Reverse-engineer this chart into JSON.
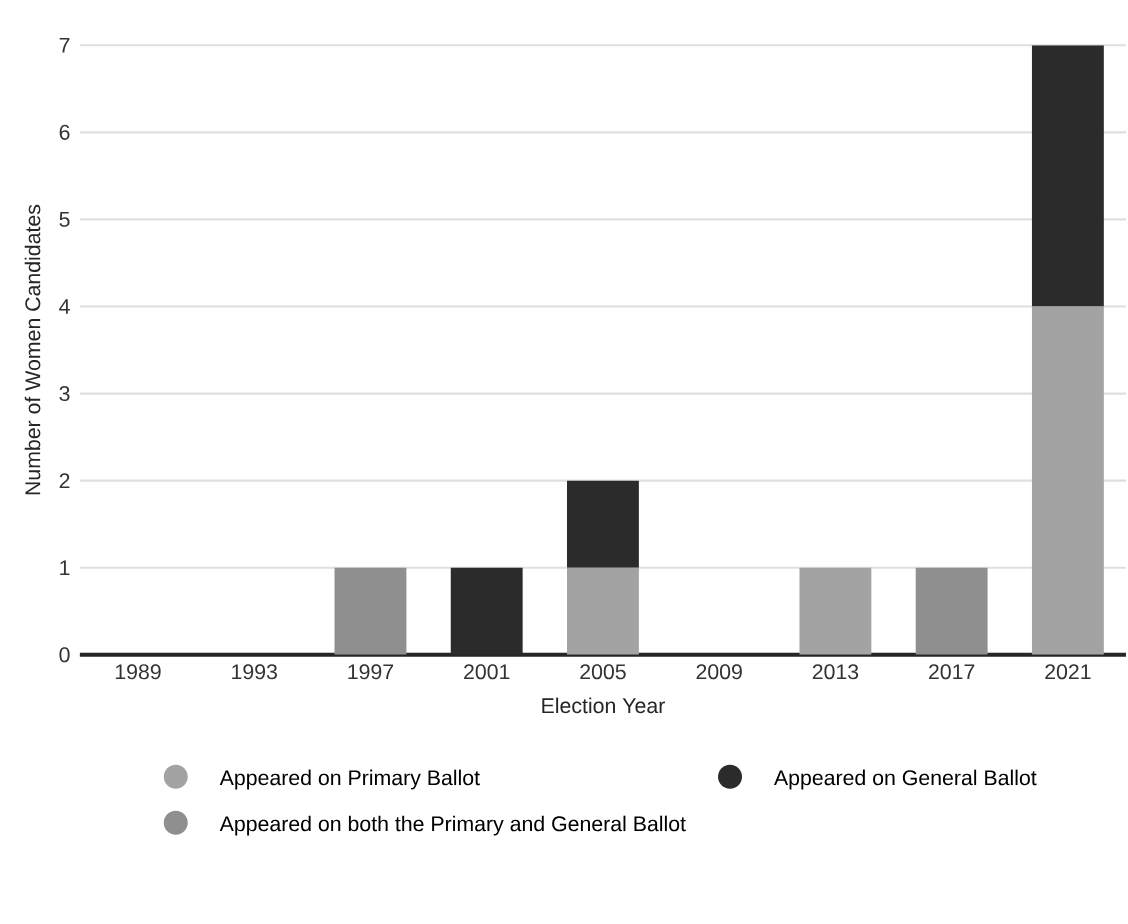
{
  "chart_data": {
    "type": "bar",
    "stacked": true,
    "xlabel": "Election Year",
    "ylabel": "Number of Women Candidates",
    "categories": [
      "1989",
      "1993",
      "1997",
      "2001",
      "2005",
      "2009",
      "2013",
      "2017",
      "2021"
    ],
    "series": [
      {
        "name": "Appeared on Primary Ballot",
        "color": "#a3a3a3",
        "values": [
          0,
          0,
          0,
          0,
          1,
          0,
          1,
          0,
          4
        ]
      },
      {
        "name": "Appeared on General Ballot",
        "color": "#2b2b2b",
        "values": [
          0,
          0,
          0,
          1,
          1,
          0,
          0,
          0,
          3
        ]
      },
      {
        "name": "Appeared on both the Primary and General Ballot",
        "color": "#8f8f8f",
        "values": [
          0,
          0,
          1,
          0,
          0,
          0,
          0,
          1,
          0
        ]
      }
    ],
    "ylim": [
      0,
      7
    ],
    "yticks": [
      0,
      1,
      2,
      3,
      4,
      5,
      6,
      7
    ],
    "grid": "y",
    "legend": "bottom"
  }
}
